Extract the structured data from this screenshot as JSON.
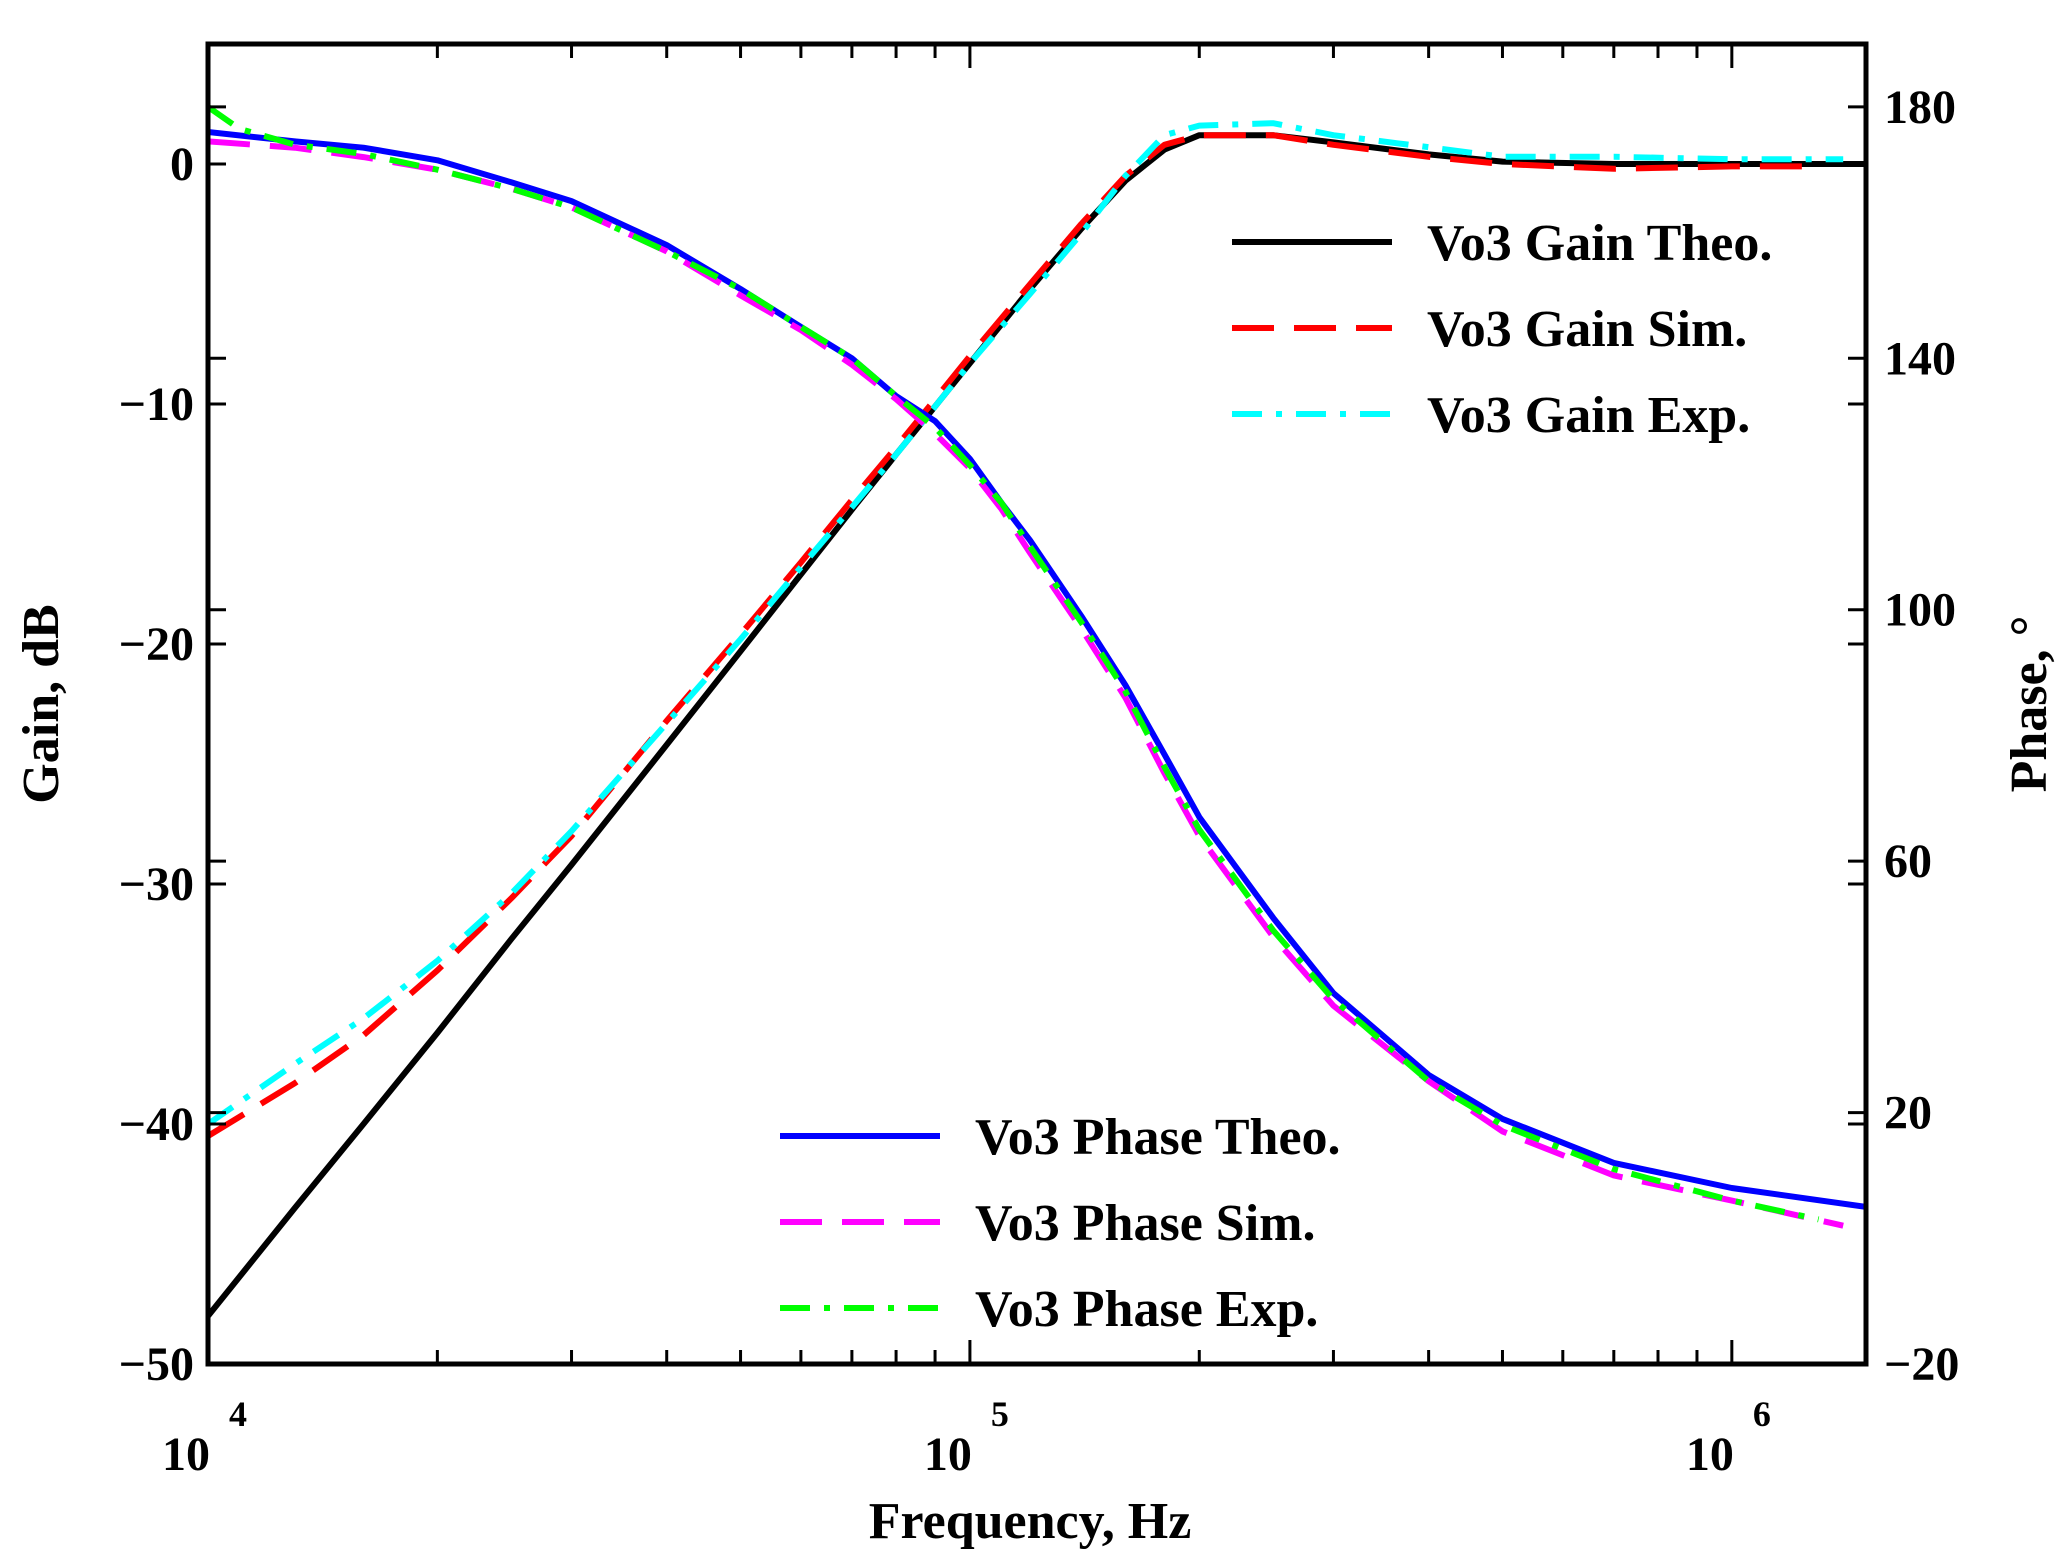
{
  "chart_data": {
    "type": "line",
    "title": "",
    "xlabel": "Frequency, Hz",
    "ylabel": "Gain, dB",
    "y2label": "Phase, °",
    "xscale": "log",
    "xlim": [
      10000,
      1500000
    ],
    "ylim": [
      -50,
      5
    ],
    "y2lim": [
      -20,
      190
    ],
    "x_ticks": [
      {
        "base": "10",
        "exp": "4",
        "value": 10000
      },
      {
        "base": "10",
        "exp": "5",
        "value": 100000
      },
      {
        "base": "10",
        "exp": "6",
        "value": 1000000
      }
    ],
    "y_ticks": [
      "0",
      "−10",
      "−20",
      "−30",
      "−40",
      "−50"
    ],
    "y_tick_values": [
      0,
      -10,
      -20,
      -30,
      -40,
      -50
    ],
    "y2_ticks": [
      "180",
      "140",
      "100",
      "60",
      "20",
      "−20"
    ],
    "y2_tick_values": [
      180,
      140,
      100,
      60,
      20,
      -20
    ],
    "legends": [
      {
        "placement": "top-right",
        "entries": [
          "gain_theo",
          "gain_sim",
          "gain_exp"
        ]
      },
      {
        "placement": "bottom-center",
        "entries": [
          "phase_theo",
          "phase_sim",
          "phase_exp"
        ]
      }
    ],
    "series": [
      {
        "id": "gain_theo",
        "name": "Vo3 Gain Theo.",
        "axis": "left",
        "color": "#000000",
        "style": "solid",
        "x": [
          10000,
          13000,
          16000,
          20000,
          25000,
          30000,
          40000,
          50000,
          60000,
          70000,
          80000,
          90000,
          100000,
          120000,
          140000,
          160000,
          180000,
          200000,
          250000,
          300000,
          400000,
          500000,
          700000,
          1000000,
          1500000
        ],
        "y": [
          -48,
          -43.5,
          -40,
          -36.2,
          -32.3,
          -29.2,
          -24.2,
          -20.3,
          -17.1,
          -14.4,
          -12.1,
          -10.1,
          -8.3,
          -5.2,
          -2.7,
          -0.7,
          0.6,
          1.2,
          1.2,
          0.9,
          0.4,
          0.1,
          0,
          0,
          0
        ]
      },
      {
        "id": "gain_sim",
        "name": "Vo3 Gain Sim.",
        "axis": "left",
        "color": "#ff0000",
        "style": "dashed",
        "x": [
          10000,
          13000,
          16000,
          20000,
          25000,
          30000,
          40000,
          50000,
          60000,
          70000,
          80000,
          90000,
          100000,
          120000,
          140000,
          160000,
          180000,
          200000,
          250000,
          300000,
          400000,
          500000,
          700000,
          1000000,
          1300000
        ],
        "y": [
          -40.5,
          -38.3,
          -36.3,
          -33.6,
          -30.6,
          -28,
          -23.2,
          -19.6,
          -16.6,
          -14,
          -11.8,
          -9.8,
          -8,
          -5,
          -2.5,
          -0.5,
          0.8,
          1.2,
          1.2,
          0.8,
          0.3,
          0,
          -0.2,
          -0.1,
          -0.1
        ]
      },
      {
        "id": "gain_exp",
        "name": "Vo3 Gain Exp.",
        "axis": "left",
        "color": "#00ffff",
        "style": "dashdot",
        "x": [
          10000,
          13000,
          16000,
          20000,
          25000,
          30000,
          40000,
          50000,
          60000,
          70000,
          80000,
          90000,
          100000,
          120000,
          140000,
          160000,
          180000,
          200000,
          250000,
          300000,
          400000,
          500000,
          700000,
          1000000,
          1400000
        ],
        "y": [
          -40,
          -37.5,
          -35.6,
          -33.2,
          -30.4,
          -27.8,
          -23.3,
          -19.8,
          -16.8,
          -14.3,
          -12.1,
          -10.1,
          -8.3,
          -5.4,
          -2.9,
          -0.5,
          1.2,
          1.6,
          1.7,
          1.2,
          0.7,
          0.3,
          0.3,
          0.2,
          0.2
        ]
      },
      {
        "id": "phase_theo",
        "name": "Vo3 Phase Theo.",
        "axis": "right",
        "color": "#0000ff",
        "style": "solid",
        "x": [
          10000,
          13000,
          16000,
          20000,
          25000,
          30000,
          40000,
          50000,
          60000,
          70000,
          80000,
          90000,
          100000,
          110000,
          120000,
          140000,
          160000,
          180000,
          200000,
          250000,
          300000,
          400000,
          500000,
          700000,
          1000000,
          1500000
        ],
        "y": [
          176,
          174.5,
          173.5,
          171.5,
          168,
          165,
          158,
          151,
          145,
          140,
          134,
          130,
          124,
          117,
          111,
          99,
          88,
          77,
          67,
          51,
          39,
          26,
          19,
          12,
          8,
          5
        ]
      },
      {
        "id": "phase_sim",
        "name": "Vo3 Phase Sim.",
        "axis": "right",
        "color": "#ff00ff",
        "style": "dashed",
        "x": [
          10000,
          13000,
          16000,
          20000,
          25000,
          30000,
          40000,
          50000,
          60000,
          70000,
          80000,
          90000,
          100000,
          110000,
          120000,
          140000,
          160000,
          180000,
          200000,
          250000,
          300000,
          400000,
          500000,
          700000,
          1000000,
          1400000
        ],
        "y": [
          174.5,
          173.5,
          172,
          170,
          167,
          164,
          157,
          150,
          144.5,
          139,
          133.5,
          128,
          122.5,
          116,
          109,
          97,
          86,
          74,
          64,
          48,
          37,
          25,
          17,
          10,
          6,
          2
        ]
      },
      {
        "id": "phase_exp",
        "name": "Vo3 Phase Exp.",
        "axis": "right",
        "color": "#00ff00",
        "style": "dashdot",
        "x": [
          10000,
          11000,
          13000,
          16000,
          20000,
          25000,
          30000,
          40000,
          50000,
          60000,
          70000,
          80000,
          90000,
          100000,
          110000,
          120000,
          140000,
          160000,
          180000,
          200000,
          250000,
          300000,
          400000,
          500000,
          700000,
          1000000,
          1300000
        ],
        "y": [
          180,
          176.5,
          174,
          172.5,
          170,
          167,
          164,
          157,
          151,
          145,
          140,
          134,
          129,
          123,
          117,
          110,
          98,
          87,
          75,
          65,
          49,
          38,
          25,
          18,
          11,
          6,
          3
        ]
      }
    ]
  }
}
